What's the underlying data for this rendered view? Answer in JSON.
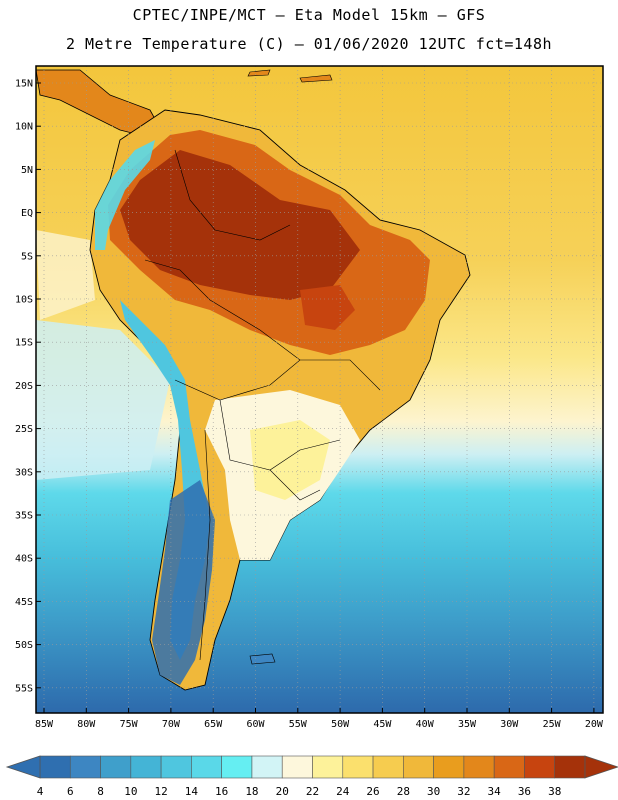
{
  "header": {
    "line1": "CPTEC/INPE/MCT –  Eta Model 15km – GFS",
    "line2": "2 Metre Temperature (C) – 01/06/2020 12UTC fct=148h"
  },
  "axes": {
    "lat_labels": [
      "15N",
      "10N",
      "5N",
      "EQ",
      "5S",
      "10S",
      "15S",
      "20S",
      "25S",
      "30S",
      "35S",
      "40S",
      "45S",
      "50S",
      "55S"
    ],
    "lon_labels": [
      "85W",
      "80W",
      "75W",
      "70W",
      "65W",
      "60W",
      "55W",
      "50W",
      "45W",
      "40W",
      "35W",
      "30W",
      "25W",
      "20W"
    ]
  },
  "colorbar": {
    "labels": [
      "4",
      "6",
      "8",
      "10",
      "12",
      "14",
      "16",
      "18",
      "20",
      "22",
      "24",
      "26",
      "28",
      "30",
      "32",
      "34",
      "36",
      "38"
    ],
    "colors": [
      "#2f6fb0",
      "#3d86c2",
      "#3f9fcb",
      "#44b4d6",
      "#4fc6df",
      "#5ad8e8",
      "#65eef2",
      "#d2f4f6",
      "#fdf7dc",
      "#fdf29a",
      "#fbe06d",
      "#f6cc4f",
      "#f0b83a",
      "#e99d1e",
      "#e3871b",
      "#d96716",
      "#c7440f",
      "#a5320a"
    ]
  },
  "map_colors": {
    "ocean_tropical": "#f3cc52",
    "ocean_cold": "#3f9fcb",
    "land_hot": "#a5320a",
    "land_warm": "#d96716",
    "land_mild": "#f0b83a",
    "land_cool": "#fdf7dc",
    "andes": "#4fc6df",
    "patagonia": "#2f6fb0"
  }
}
